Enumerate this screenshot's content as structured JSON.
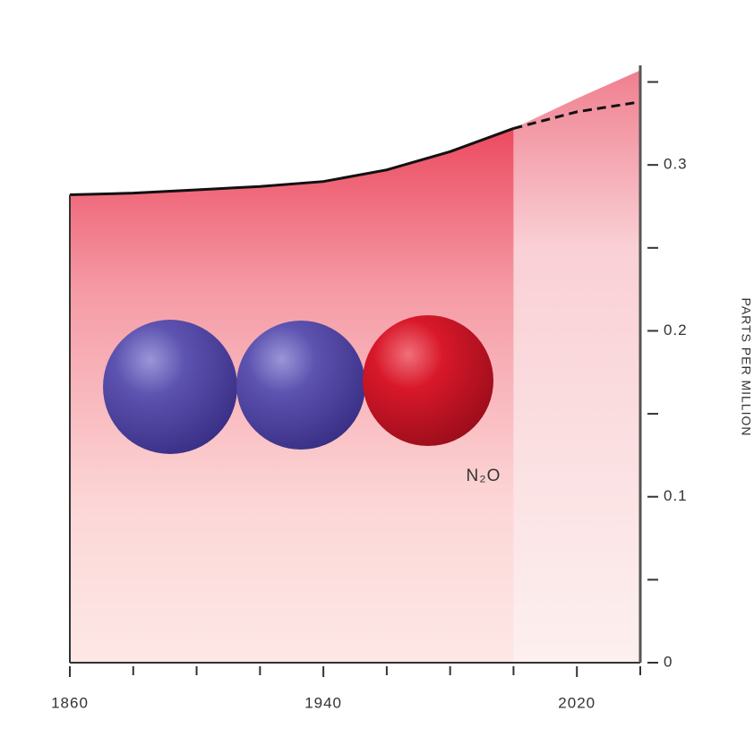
{
  "chart_data": {
    "type": "area",
    "y_label": "PARTS PER MILLION",
    "annotation": "N₂O",
    "xlim": [
      1860,
      2040
    ],
    "xticks": [
      1860,
      1940,
      2020
    ],
    "x_minor_ticks": [
      1880,
      1900,
      1920,
      1960,
      1980,
      2000,
      2040
    ],
    "ylim": [
      0,
      0.36
    ],
    "yticks": [
      0,
      0.1,
      0.2,
      0.3
    ],
    "y_minor_ticks": [
      0.05,
      0.15,
      0.25,
      0.35
    ],
    "series": [
      {
        "x": [
          1860,
          1880,
          1900,
          1920,
          1940,
          1960,
          1980,
          2000
        ],
        "values": [
          0.282,
          0.283,
          0.285,
          0.287,
          0.29,
          0.297,
          0.308,
          0.322
        ],
        "color": "#e8374f",
        "line_color": "#111111"
      },
      {
        "x": [
          2000,
          2020,
          2040
        ],
        "values": [
          0.322,
          0.34,
          0.357
        ],
        "color": "#f3a5b0"
      },
      {
        "x": [
          2000,
          2020,
          2040
        ],
        "values": [
          0.322,
          0.332,
          0.338
        ],
        "color": "#111111",
        "dashed": true
      }
    ]
  }
}
